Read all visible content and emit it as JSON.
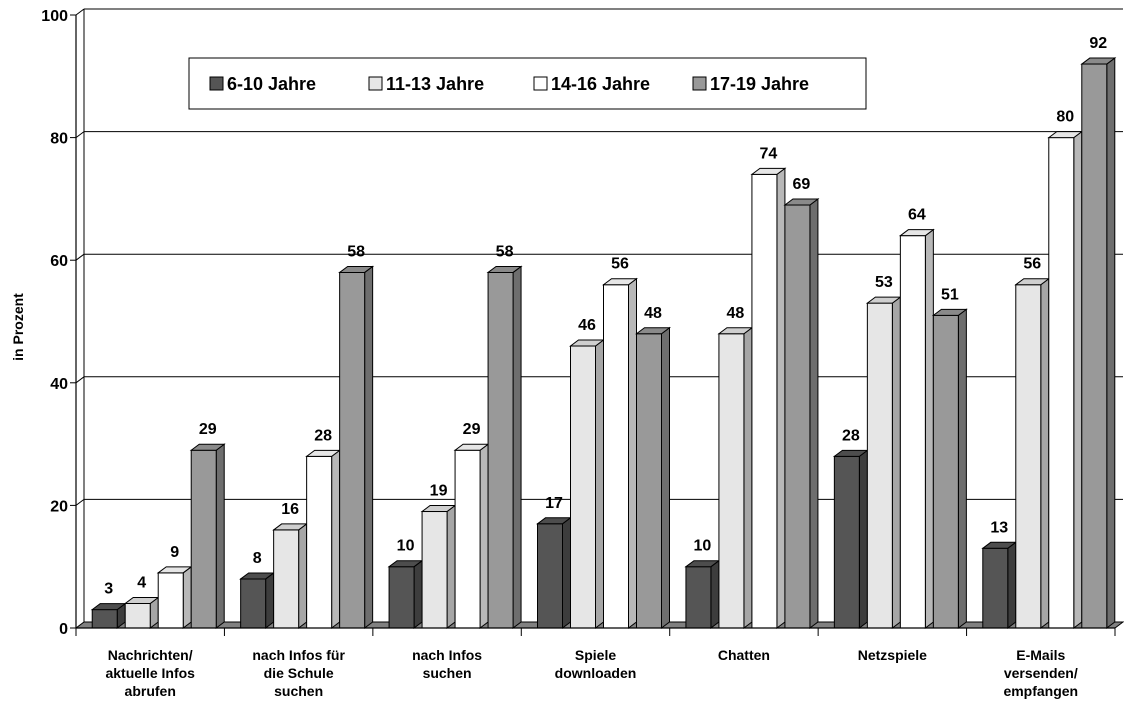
{
  "chart_data": {
    "type": "bar",
    "ylabel": "in Prozent",
    "ylim": [
      0,
      100
    ],
    "yticks": [
      "0",
      "20",
      "40",
      "60",
      "80",
      "100"
    ],
    "grid": true,
    "legend_position": "top-left",
    "categories": [
      [
        "Nachrichten/",
        "aktuelle Infos",
        "abrufen"
      ],
      [
        "nach Infos für",
        "die Schule",
        "suchen"
      ],
      [
        "nach Infos",
        "suchen"
      ],
      [
        "Spiele",
        "downloaden"
      ],
      [
        "Chatten"
      ],
      [
        "Netzspiele"
      ],
      [
        "E-Mails",
        "versenden/",
        "empfangen"
      ]
    ],
    "series": [
      {
        "name": "6-10 Jahre",
        "values": [
          3,
          8,
          10,
          17,
          10,
          28,
          13
        ]
      },
      {
        "name": "11-13 Jahre",
        "values": [
          4,
          16,
          19,
          46,
          48,
          53,
          56
        ]
      },
      {
        "name": "14-16 Jahre",
        "values": [
          9,
          28,
          29,
          56,
          74,
          64,
          80
        ]
      },
      {
        "name": "17-19 Jahre",
        "values": [
          29,
          58,
          58,
          48,
          69,
          51,
          92
        ]
      }
    ],
    "colors": {
      "6-10 Jahre": "#555555",
      "11-13 Jahre": "#e6e6e6",
      "14-16 Jahre": "#ffffff",
      "17-19 Jahre": "#999999"
    }
  }
}
